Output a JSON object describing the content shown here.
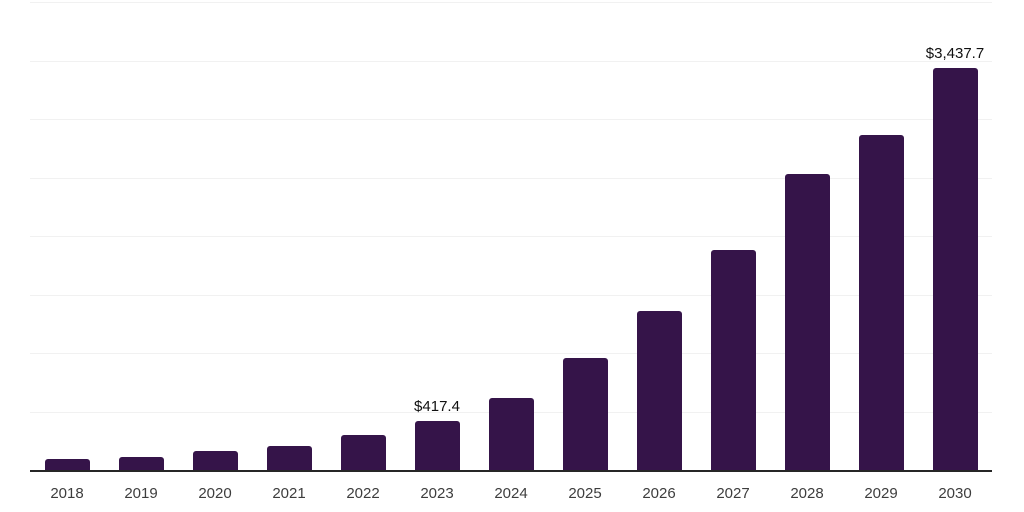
{
  "chart_data": {
    "type": "bar",
    "title": "",
    "xlabel": "",
    "ylabel": "",
    "categories": [
      "2018",
      "2019",
      "2020",
      "2021",
      "2022",
      "2023",
      "2024",
      "2025",
      "2026",
      "2027",
      "2028",
      "2029",
      "2030"
    ],
    "values": [
      91,
      114,
      160,
      205,
      299,
      417.4,
      612,
      956,
      1358,
      1879,
      2532,
      2861,
      3437.7
    ],
    "value_labels": {
      "2023": "$417.4",
      "2030": "$3,437.7"
    },
    "ylim": [
      0,
      4000
    ],
    "grid_interval": 500,
    "grid": true,
    "legend": false,
    "y_axis_ticks_shown": false,
    "colors": {
      "bar": "#351449",
      "axis_line": "#262626",
      "gridline": "#f1f1f1",
      "tick_label": "#3d3d3d",
      "value_label": "#111111",
      "background": "#ffffff"
    }
  }
}
